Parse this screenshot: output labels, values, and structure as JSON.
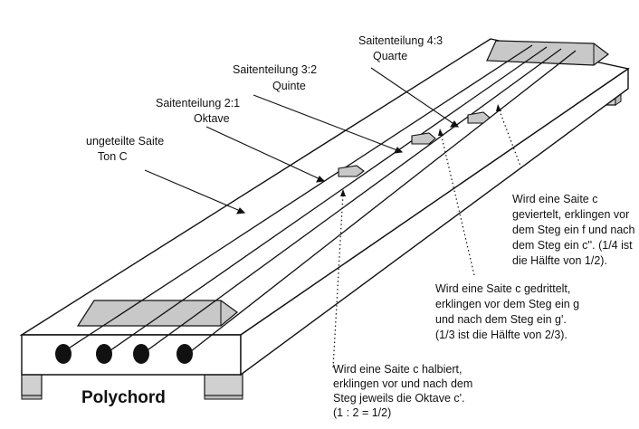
{
  "title": "Polychord",
  "labels": {
    "unsplit": [
      "ungeteilte Saite",
      "Ton C"
    ],
    "ratio_2_1": [
      "Saitenteilung 2:1",
      "Oktave"
    ],
    "ratio_3_2": [
      "Saitenteilung 3:2",
      "Quinte"
    ],
    "ratio_4_3": [
      "Saitenteilung 4:3",
      "Quarte"
    ]
  },
  "notes": {
    "halved": [
      "Wird eine Saite c halbiert,",
      "erklingen vor und nach dem",
      "Steg jeweils die Oktave c'.",
      "(1 : 2 = 1/2)"
    ],
    "thirds": [
      "Wird eine Saite c gedrittelt,",
      "erklingen vor dem Steg ein g",
      "und nach dem Steg ein g'.",
      "(1/3 ist die Hälfte von 2/3)."
    ],
    "quarters": [
      "Wird eine Saite c",
      "geviertelt, erklingen vor",
      "dem Steg ein f und nach",
      "dem Steg ein c''. (1/4 ist",
      "die Hälfte von 1/2)."
    ]
  },
  "colors": {
    "board": "#ffffff",
    "outline": "#111111",
    "bridge": "#c8c8c8",
    "leg": "#d0d0d0",
    "peg": "#111111"
  },
  "icons": [
    "tuning-peg-icon",
    "bridge-wedge-icon"
  ]
}
